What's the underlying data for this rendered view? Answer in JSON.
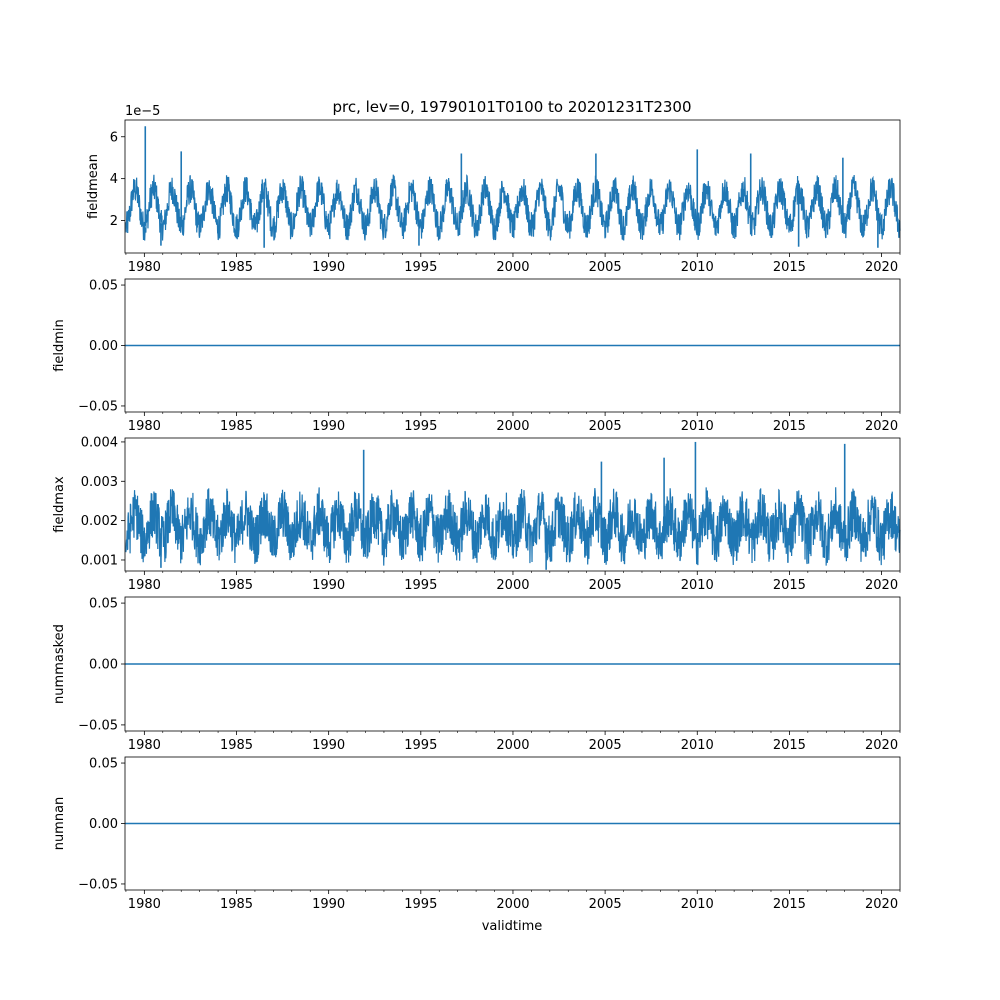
{
  "figure": {
    "title": "prc, lev=0, 19790101T0100 to 20201231T2300",
    "xlabel": "validtime"
  },
  "colors": {
    "series": "#1f77b4",
    "axes": "#000000",
    "background": "#ffffff"
  },
  "chart_data": [
    {
      "type": "line",
      "panel": "fieldmean",
      "ylabel": "fieldmean",
      "offset_label": "1e−5",
      "xlim": [
        1978.95,
        2021.0
      ],
      "ylim": [
        0.45,
        6.8
      ],
      "x_ticks": [
        1980,
        1985,
        1990,
        1995,
        2000,
        2005,
        2010,
        2015,
        2020
      ],
      "x_tick_labels": [
        "1980",
        "1985",
        "1990",
        "1995",
        "2000",
        "2005",
        "2010",
        "2015",
        "2020"
      ],
      "y_ticks": [
        2,
        4,
        6
      ],
      "y_tick_labels": [
        "2",
        "4",
        "6"
      ],
      "series": [
        {
          "name": "fieldmean",
          "description": "dense hourly signal with strong annual cycle",
          "baseline": 2.6,
          "annual_amplitude": 0.9,
          "noise_amplitude": 0.7,
          "typical_range": [
            1.2,
            4.3
          ],
          "peaks": [
            [
              1980.05,
              6.5
            ],
            [
              1982.0,
              5.3
            ],
            [
              1997.2,
              5.2
            ],
            [
              2004.5,
              5.2
            ],
            [
              2010.0,
              5.4
            ],
            [
              2012.9,
              5.2
            ],
            [
              2017.9,
              5.0
            ]
          ],
          "troughs": [
            [
              1980.9,
              0.8
            ],
            [
              1986.5,
              0.7
            ],
            [
              1994.9,
              0.8
            ],
            [
              2015.5,
              0.75
            ],
            [
              2019.8,
              0.7
            ]
          ]
        }
      ]
    },
    {
      "type": "line",
      "panel": "fieldmin",
      "ylabel": "fieldmin",
      "xlim": [
        1978.95,
        2021.0
      ],
      "ylim": [
        -0.055,
        0.055
      ],
      "x_ticks": [
        1980,
        1985,
        1990,
        1995,
        2000,
        2005,
        2010,
        2015,
        2020
      ],
      "x_tick_labels": [
        "1980",
        "1985",
        "1990",
        "1995",
        "2000",
        "2005",
        "2010",
        "2015",
        "2020"
      ],
      "y_ticks": [
        -0.05,
        0.0,
        0.05
      ],
      "y_tick_labels": [
        "−0.05",
        "0.00",
        "0.05"
      ],
      "series": [
        {
          "name": "fieldmin",
          "constant": 0.0
        }
      ]
    },
    {
      "type": "line",
      "panel": "fieldmax",
      "ylabel": "fieldmax",
      "xlim": [
        1978.95,
        2021.0
      ],
      "ylim": [
        0.00072,
        0.0041
      ],
      "x_ticks": [
        1980,
        1985,
        1990,
        1995,
        2000,
        2005,
        2010,
        2015,
        2020
      ],
      "x_tick_labels": [
        "1980",
        "1985",
        "1990",
        "1995",
        "2000",
        "2005",
        "2010",
        "2015",
        "2020"
      ],
      "y_ticks": [
        0.001,
        0.002,
        0.003,
        0.004
      ],
      "y_tick_labels": [
        "0.001",
        "0.002",
        "0.003",
        "0.004"
      ],
      "series": [
        {
          "name": "fieldmax",
          "description": "dense hourly signal with annual cycle",
          "baseline": 0.00185,
          "annual_amplitude": 0.00035,
          "noise_amplitude": 0.00065,
          "typical_range": [
            0.0009,
            0.0031
          ],
          "peaks": [
            [
              1991.9,
              0.0038
            ],
            [
              2009.9,
              0.004
            ],
            [
              2018.0,
              0.00395
            ],
            [
              2008.2,
              0.0036
            ],
            [
              2004.8,
              0.0035
            ]
          ],
          "troughs": [
            [
              2001.8,
              0.00075
            ],
            [
              1980.9,
              0.0008
            ]
          ]
        }
      ]
    },
    {
      "type": "line",
      "panel": "nummasked",
      "ylabel": "nummasked",
      "xlim": [
        1978.95,
        2021.0
      ],
      "ylim": [
        -0.055,
        0.055
      ],
      "x_ticks": [
        1980,
        1985,
        1990,
        1995,
        2000,
        2005,
        2010,
        2015,
        2020
      ],
      "x_tick_labels": [
        "1980",
        "1985",
        "1990",
        "1995",
        "2000",
        "2005",
        "2010",
        "2015",
        "2020"
      ],
      "y_ticks": [
        -0.05,
        0.0,
        0.05
      ],
      "y_tick_labels": [
        "−0.05",
        "0.00",
        "0.05"
      ],
      "series": [
        {
          "name": "nummasked",
          "constant": 0.0
        }
      ]
    },
    {
      "type": "line",
      "panel": "numnan",
      "ylabel": "numnan",
      "xlim": [
        1978.95,
        2021.0
      ],
      "ylim": [
        -0.055,
        0.055
      ],
      "x_ticks": [
        1980,
        1985,
        1990,
        1995,
        2000,
        2005,
        2010,
        2015,
        2020
      ],
      "x_tick_labels": [
        "1980",
        "1985",
        "1990",
        "1995",
        "2000",
        "2005",
        "2010",
        "2015",
        "2020"
      ],
      "y_ticks": [
        -0.05,
        0.0,
        0.05
      ],
      "y_tick_labels": [
        "−0.05",
        "0.00",
        "0.05"
      ],
      "series": [
        {
          "name": "numnan",
          "constant": 0.0
        }
      ]
    }
  ]
}
